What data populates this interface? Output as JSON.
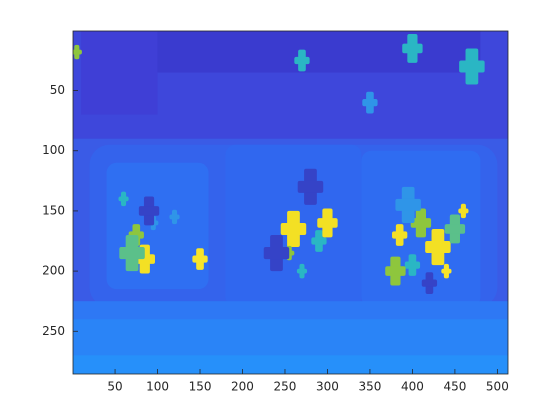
{
  "chart_data": {
    "type": "image",
    "xlim": [
      0.5,
      512.5
    ],
    "ylim": [
      0.5,
      285.5
    ],
    "y_reversed": true,
    "xticks": [
      50,
      100,
      150,
      200,
      250,
      300,
      350,
      400,
      450,
      500
    ],
    "yticks": [
      50,
      100,
      150,
      200,
      250
    ]
  }
}
